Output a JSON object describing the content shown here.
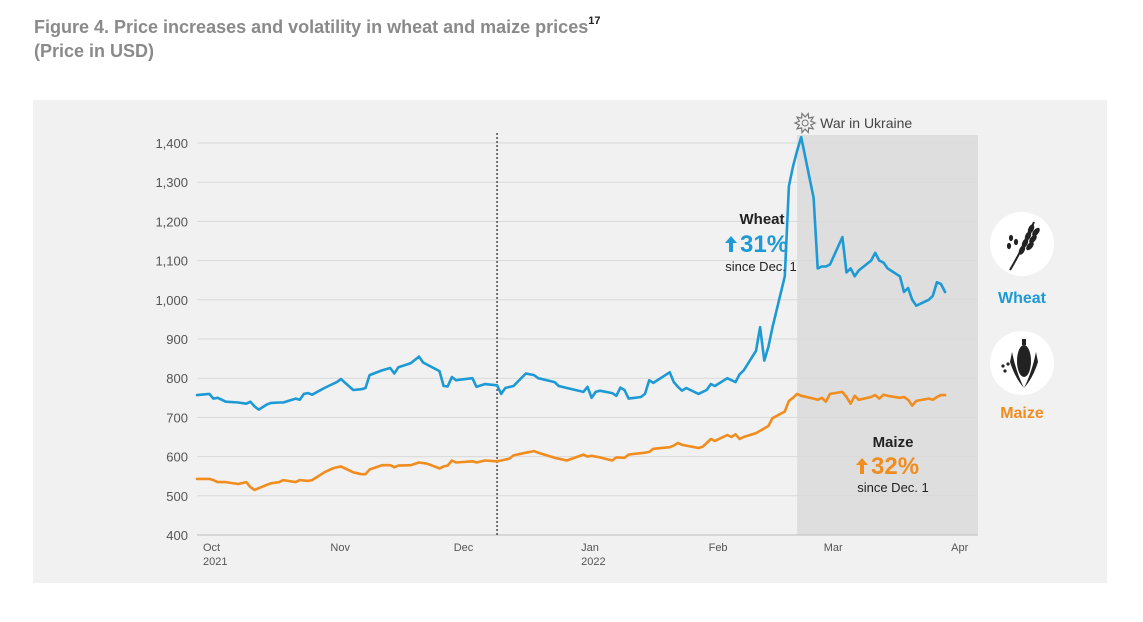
{
  "figure": {
    "title": "Figure 4. Price increases and volatility in wheat and maize prices",
    "footnote": "17",
    "subtitle": "(Price in USD)"
  },
  "chart_data": {
    "type": "line",
    "ylim": [
      400,
      1400
    ],
    "yticks": [
      "400",
      "500",
      "600",
      "700",
      "800",
      "900",
      "1,000",
      "1,100",
      "1,200",
      "1,300",
      "1,400"
    ],
    "xlim": [
      "2021-10-01",
      "2022-04-09"
    ],
    "xticks": [
      {
        "date": "2021-10-01",
        "label": "Oct",
        "year": "2021"
      },
      {
        "date": "2021-11-01",
        "label": "Nov",
        "year": ""
      },
      {
        "date": "2021-12-01",
        "label": "Dec",
        "year": ""
      },
      {
        "date": "2022-01-01",
        "label": "Jan",
        "year": "2022"
      },
      {
        "date": "2022-02-01",
        "label": "Feb",
        "year": ""
      },
      {
        "date": "2022-03-01",
        "label": "Mar",
        "year": ""
      },
      {
        "date": "2022-04-01",
        "label": "Apr",
        "year": ""
      }
    ],
    "reference_line": "2021-12-13",
    "shaded_period": {
      "start": "2022-02-24",
      "end": "2022-04-09",
      "label": "War in Ukraine"
    },
    "series": [
      {
        "name": "Wheat",
        "color": "#1d9ad6",
        "icon": "wheat-icon",
        "annotation": {
          "title": "Wheat",
          "change": "31%",
          "note": "since Dec. 1"
        },
        "points": [
          [
            "2021-10-01",
            757
          ],
          [
            "2021-10-04",
            760
          ],
          [
            "2021-10-05",
            748
          ],
          [
            "2021-10-06",
            750
          ],
          [
            "2021-10-08",
            740
          ],
          [
            "2021-10-11",
            738
          ],
          [
            "2021-10-13",
            735
          ],
          [
            "2021-10-14",
            740
          ],
          [
            "2021-10-15",
            728
          ],
          [
            "2021-10-16",
            720
          ],
          [
            "2021-10-18",
            733
          ],
          [
            "2021-10-19",
            737
          ],
          [
            "2021-10-21",
            738
          ],
          [
            "2021-10-22",
            738
          ],
          [
            "2021-10-25",
            748
          ],
          [
            "2021-10-26",
            745
          ],
          [
            "2021-10-27",
            760
          ],
          [
            "2021-10-28",
            762
          ],
          [
            "2021-10-29",
            758
          ],
          [
            "2021-11-01",
            775
          ],
          [
            "2021-11-02",
            780
          ],
          [
            "2021-11-04",
            790
          ],
          [
            "2021-11-05",
            798
          ],
          [
            "2021-11-08",
            770
          ],
          [
            "2021-11-10",
            772
          ],
          [
            "2021-11-11",
            775
          ],
          [
            "2021-11-12",
            808
          ],
          [
            "2021-11-13",
            812
          ],
          [
            "2021-11-15",
            820
          ],
          [
            "2021-11-17",
            826
          ],
          [
            "2021-11-18",
            812
          ],
          [
            "2021-11-19",
            828
          ],
          [
            "2021-11-22",
            838
          ],
          [
            "2021-11-24",
            855
          ],
          [
            "2021-11-25",
            840
          ],
          [
            "2021-11-29",
            818
          ],
          [
            "2021-11-30",
            780
          ],
          [
            "2021-12-01",
            779
          ],
          [
            "2021-12-02",
            803
          ],
          [
            "2021-12-03",
            795
          ],
          [
            "2021-12-07",
            800
          ],
          [
            "2021-12-08",
            778
          ],
          [
            "2021-12-10",
            785
          ],
          [
            "2021-12-13",
            782
          ],
          [
            "2021-12-14",
            760
          ],
          [
            "2021-12-15",
            775
          ],
          [
            "2021-12-17",
            780
          ],
          [
            "2021-12-20",
            812
          ],
          [
            "2021-12-22",
            808
          ],
          [
            "2021-12-23",
            800
          ],
          [
            "2021-12-27",
            790
          ],
          [
            "2021-12-28",
            780
          ],
          [
            "2021-12-30",
            775
          ],
          [
            "2022-01-03",
            765
          ],
          [
            "2022-01-04",
            778
          ],
          [
            "2022-01-05",
            750
          ],
          [
            "2022-01-06",
            765
          ],
          [
            "2022-01-07",
            768
          ],
          [
            "2022-01-10",
            762
          ],
          [
            "2022-01-11",
            755
          ],
          [
            "2022-01-12",
            776
          ],
          [
            "2022-01-13",
            770
          ],
          [
            "2022-01-14",
            748
          ],
          [
            "2022-01-17",
            752
          ],
          [
            "2022-01-18",
            760
          ],
          [
            "2022-01-19",
            795
          ],
          [
            "2022-01-20",
            788
          ],
          [
            "2022-01-24",
            815
          ],
          [
            "2022-01-25",
            790
          ],
          [
            "2022-01-26",
            778
          ],
          [
            "2022-01-27",
            768
          ],
          [
            "2022-01-28",
            775
          ],
          [
            "2022-01-31",
            760
          ],
          [
            "2022-02-01",
            765
          ],
          [
            "2022-02-02",
            770
          ],
          [
            "2022-02-03",
            785
          ],
          [
            "2022-02-04",
            780
          ],
          [
            "2022-02-07",
            800
          ],
          [
            "2022-02-08",
            795
          ],
          [
            "2022-02-09",
            790
          ],
          [
            "2022-02-10",
            810
          ],
          [
            "2022-02-11",
            820
          ],
          [
            "2022-02-14",
            870
          ],
          [
            "2022-02-15",
            930
          ],
          [
            "2022-02-16",
            845
          ],
          [
            "2022-02-17",
            880
          ],
          [
            "2022-02-18",
            930
          ],
          [
            "2022-02-21",
            1060
          ],
          [
            "2022-02-22",
            1290
          ],
          [
            "2022-02-23",
            1340
          ],
          [
            "2022-02-24",
            1380
          ],
          [
            "2022-02-25",
            1415
          ],
          [
            "2022-02-28",
            1260
          ],
          [
            "2022-03-01",
            1080
          ],
          [
            "2022-03-02",
            1085
          ],
          [
            "2022-03-03",
            1085
          ],
          [
            "2022-03-04",
            1090
          ],
          [
            "2022-03-07",
            1160
          ],
          [
            "2022-03-08",
            1070
          ],
          [
            "2022-03-09",
            1080
          ],
          [
            "2022-03-10",
            1060
          ],
          [
            "2022-03-11",
            1075
          ],
          [
            "2022-03-14",
            1100
          ],
          [
            "2022-03-15",
            1120
          ],
          [
            "2022-03-16",
            1100
          ],
          [
            "2022-03-17",
            1095
          ],
          [
            "2022-03-18",
            1080
          ],
          [
            "2022-03-21",
            1060
          ],
          [
            "2022-03-22",
            1020
          ],
          [
            "2022-03-23",
            1030
          ],
          [
            "2022-03-24",
            1000
          ],
          [
            "2022-03-25",
            985
          ],
          [
            "2022-03-28",
            1000
          ],
          [
            "2022-03-29",
            1010
          ],
          [
            "2022-03-30",
            1045
          ],
          [
            "2022-03-31",
            1040
          ],
          [
            "2022-04-01",
            1020
          ]
        ]
      },
      {
        "name": "Maize",
        "color": "#f18c1e",
        "icon": "maize-icon",
        "annotation": {
          "title": "Maize",
          "change": "32%",
          "note": "since Dec. 1"
        },
        "points": [
          [
            "2021-10-01",
            543
          ],
          [
            "2021-10-04",
            543
          ],
          [
            "2021-10-05",
            540
          ],
          [
            "2021-10-06",
            535
          ],
          [
            "2021-10-08",
            535
          ],
          [
            "2021-10-11",
            530
          ],
          [
            "2021-10-13",
            535
          ],
          [
            "2021-10-14",
            522
          ],
          [
            "2021-10-15",
            515
          ],
          [
            "2021-10-18",
            528
          ],
          [
            "2021-10-19",
            532
          ],
          [
            "2021-10-21",
            535
          ],
          [
            "2021-10-22",
            540
          ],
          [
            "2021-10-25",
            535
          ],
          [
            "2021-10-26",
            540
          ],
          [
            "2021-10-28",
            538
          ],
          [
            "2021-10-29",
            540
          ],
          [
            "2021-11-01",
            560
          ],
          [
            "2021-11-03",
            570
          ],
          [
            "2021-11-05",
            575
          ],
          [
            "2021-11-08",
            560
          ],
          [
            "2021-11-10",
            555
          ],
          [
            "2021-11-11",
            555
          ],
          [
            "2021-11-12",
            567
          ],
          [
            "2021-11-15",
            578
          ],
          [
            "2021-11-17",
            578
          ],
          [
            "2021-11-18",
            573
          ],
          [
            "2021-11-19",
            577
          ],
          [
            "2021-11-22",
            578
          ],
          [
            "2021-11-24",
            585
          ],
          [
            "2021-11-26",
            582
          ],
          [
            "2021-11-29",
            570
          ],
          [
            "2021-11-30",
            575
          ],
          [
            "2021-12-01",
            577
          ],
          [
            "2021-12-02",
            590
          ],
          [
            "2021-12-03",
            585
          ],
          [
            "2021-12-07",
            588
          ],
          [
            "2021-12-08",
            585
          ],
          [
            "2021-12-10",
            590
          ],
          [
            "2021-12-13",
            588
          ],
          [
            "2021-12-14",
            590
          ],
          [
            "2021-12-16",
            595
          ],
          [
            "2021-12-17",
            603
          ],
          [
            "2021-12-20",
            610
          ],
          [
            "2021-12-22",
            614
          ],
          [
            "2021-12-23",
            610
          ],
          [
            "2021-12-27",
            597
          ],
          [
            "2021-12-30",
            590
          ],
          [
            "2022-01-03",
            605
          ],
          [
            "2022-01-04",
            600
          ],
          [
            "2022-01-05",
            602
          ],
          [
            "2022-01-07",
            598
          ],
          [
            "2022-01-10",
            590
          ],
          [
            "2022-01-11",
            598
          ],
          [
            "2022-01-13",
            597
          ],
          [
            "2022-01-14",
            605
          ],
          [
            "2022-01-18",
            610
          ],
          [
            "2022-01-19",
            612
          ],
          [
            "2022-01-20",
            620
          ],
          [
            "2022-01-24",
            624
          ],
          [
            "2022-01-25",
            628
          ],
          [
            "2022-01-26",
            635
          ],
          [
            "2022-01-27",
            630
          ],
          [
            "2022-01-28",
            628
          ],
          [
            "2022-01-31",
            622
          ],
          [
            "2022-02-01",
            625
          ],
          [
            "2022-02-02",
            635
          ],
          [
            "2022-02-03",
            645
          ],
          [
            "2022-02-04",
            640
          ],
          [
            "2022-02-07",
            655
          ],
          [
            "2022-02-08",
            650
          ],
          [
            "2022-02-09",
            657
          ],
          [
            "2022-02-10",
            645
          ],
          [
            "2022-02-11",
            650
          ],
          [
            "2022-02-14",
            660
          ],
          [
            "2022-02-16",
            672
          ],
          [
            "2022-02-17",
            678
          ],
          [
            "2022-02-18",
            698
          ],
          [
            "2022-02-21",
            715
          ],
          [
            "2022-02-22",
            742
          ],
          [
            "2022-02-23",
            750
          ],
          [
            "2022-02-24",
            760
          ],
          [
            "2022-02-25",
            755
          ],
          [
            "2022-02-28",
            748
          ],
          [
            "2022-03-01",
            745
          ],
          [
            "2022-03-02",
            750
          ],
          [
            "2022-03-03",
            740
          ],
          [
            "2022-03-04",
            760
          ],
          [
            "2022-03-07",
            765
          ],
          [
            "2022-03-08",
            752
          ],
          [
            "2022-03-09",
            735
          ],
          [
            "2022-03-10",
            755
          ],
          [
            "2022-03-11",
            745
          ],
          [
            "2022-03-14",
            752
          ],
          [
            "2022-03-15",
            757
          ],
          [
            "2022-03-16",
            748
          ],
          [
            "2022-03-17",
            758
          ],
          [
            "2022-03-18",
            755
          ],
          [
            "2022-03-21",
            750
          ],
          [
            "2022-03-22",
            752
          ],
          [
            "2022-03-23",
            745
          ],
          [
            "2022-03-24",
            730
          ],
          [
            "2022-03-25",
            742
          ],
          [
            "2022-03-28",
            748
          ],
          [
            "2022-03-29",
            745
          ],
          [
            "2022-03-30",
            752
          ],
          [
            "2022-03-31",
            757
          ],
          [
            "2022-04-01",
            757
          ]
        ]
      }
    ]
  }
}
